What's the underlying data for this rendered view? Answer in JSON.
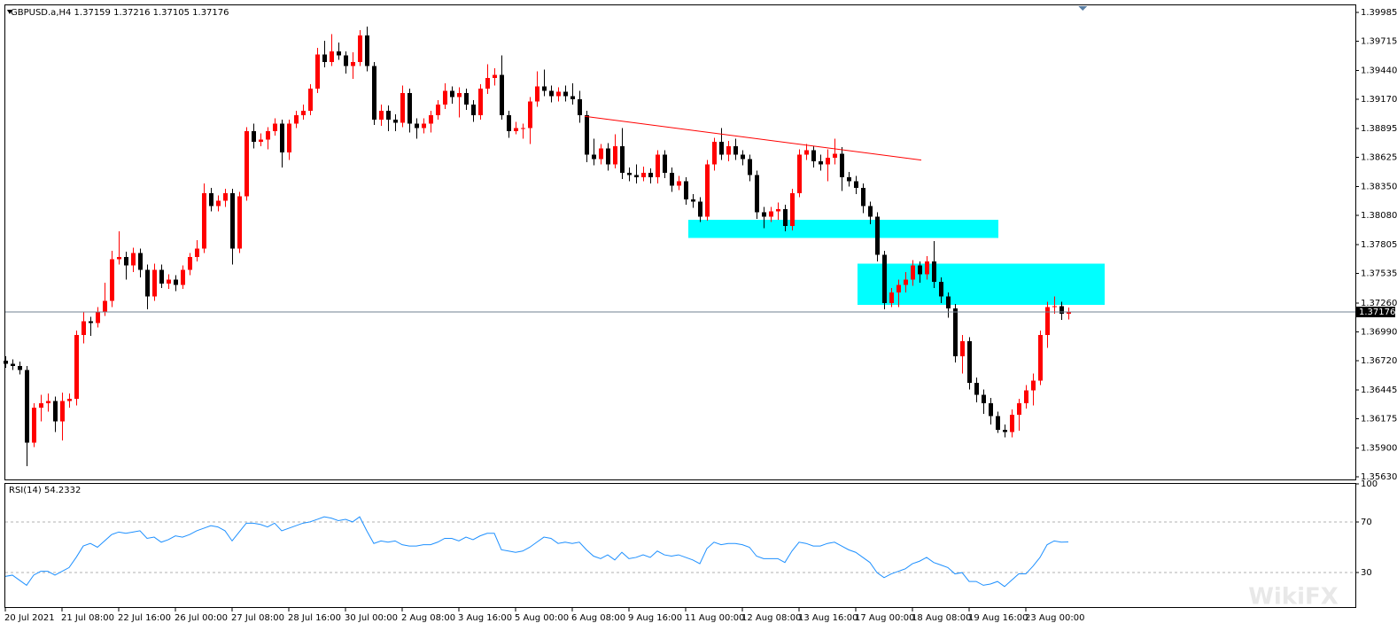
{
  "chart_data": [
    {
      "type": "candlestick",
      "title": "GBPUSD.a,H4  1.37159 1.37216 1.37105 1.37176",
      "watermark": "WikiFX",
      "up_color": "#ff0000",
      "down_color": "#000000",
      "categories": [
        "20 Jul 2021",
        null,
        null,
        null,
        null,
        null,
        null,
        null,
        "21 Jul 08:00",
        null,
        null,
        null,
        null,
        null,
        null,
        null,
        "22 Jul 16:00",
        null,
        null,
        null,
        null,
        null,
        null,
        null,
        "26 Jul 00:00",
        null,
        null,
        null,
        null,
        null,
        null,
        null,
        "27 Jul 08:00",
        null,
        null,
        null,
        null,
        null,
        null,
        null,
        "28 Jul 16:00",
        null,
        null,
        null,
        null,
        null,
        null,
        null,
        "30 Jul 00:00",
        null,
        null,
        null,
        null,
        null,
        null,
        null,
        "2 Aug 08:00",
        null,
        null,
        null,
        null,
        null,
        null,
        null,
        "3 Aug 16:00",
        null,
        null,
        null,
        null,
        null,
        null,
        null,
        "5 Aug 00:00",
        null,
        null,
        null,
        null,
        null,
        null,
        null,
        "6 Aug 08:00",
        null,
        null,
        null,
        null,
        null,
        null,
        null,
        "9 Aug 16:00",
        null,
        null,
        null,
        null,
        null,
        null,
        null,
        "11 Aug 00:00",
        null,
        null,
        null,
        null,
        null,
        null,
        null,
        "12 Aug 08:00",
        null,
        null,
        null,
        null,
        null,
        null,
        null,
        "13 Aug 16:00",
        null,
        null,
        null,
        null,
        null,
        null,
        null,
        "17 Aug 00:00",
        null,
        null,
        null,
        null,
        null,
        null,
        null,
        "18 Aug 08:00",
        null,
        null,
        null,
        null,
        null,
        null,
        null,
        "19 Aug 16:00",
        null,
        null,
        null,
        null,
        null,
        null,
        null,
        "23 Aug 00:00",
        null,
        null,
        null,
        null,
        null,
        null
      ],
      "open": [
        1.3672,
        1.3669,
        1.3667,
        1.3663,
        1.3595,
        1.3628,
        1.3632,
        1.3634,
        1.3615,
        1.3634,
        1.3636,
        1.3696,
        1.3709,
        1.3707,
        1.3718,
        1.3728,
        1.3767,
        1.3769,
        1.3761,
        1.3773,
        1.3757,
        1.3732,
        1.3757,
        1.3744,
        1.3748,
        1.3743,
        1.3757,
        1.3769,
        1.3777,
        1.3829,
        1.3817,
        1.3822,
        1.3829,
        1.3777,
        1.3826,
        1.3887,
        1.3877,
        1.3879,
        1.3887,
        1.3894,
        1.3867,
        1.3894,
        1.3902,
        1.3906,
        1.3927,
        1.3959,
        1.3952,
        1.3962,
        1.3958,
        1.3948,
        1.3952,
        1.3977,
        1.3948,
        1.3898,
        1.3906,
        1.3898,
        1.3895,
        1.3923,
        1.3894,
        1.389,
        1.3894,
        1.3902,
        1.3912,
        1.3925,
        1.3919,
        1.3923,
        1.3912,
        1.3902,
        1.3927,
        1.3937,
        1.394,
        1.3902,
        1.3887,
        1.389,
        1.389,
        1.3915,
        1.3929,
        1.3925,
        1.392,
        1.3924,
        1.392,
        1.3917,
        1.3902,
        1.3865,
        1.3861,
        1.3871,
        1.3856,
        1.3873,
        1.3848,
        1.3846,
        1.3844,
        1.3848,
        1.3844,
        1.3865,
        1.3848,
        1.3836,
        1.384,
        1.3823,
        1.3821,
        1.3807,
        1.3856,
        1.3877,
        1.3865,
        1.3873,
        1.3865,
        1.3861,
        1.3846,
        1.3811,
        1.3807,
        1.3812,
        1.3814,
        1.3798,
        1.3829,
        1.3865,
        1.3869,
        1.3859,
        1.3856,
        1.3862,
        1.3866,
        1.3844,
        1.384,
        1.3834,
        1.3817,
        1.3807,
        1.3771,
        1.3726,
        1.3736,
        1.3743,
        1.3748,
        1.3761,
        1.3753,
        1.3765,
        1.3746,
        1.3732,
        1.3721,
        1.3676,
        1.369,
        1.3651,
        1.364,
        1.3632,
        1.362,
        1.3607,
        1.3605,
        1.3621,
        1.3632,
        1.3644,
        1.3653,
        1.3696,
        1.3722,
        1.3723,
        1.37159
      ],
      "high": [
        1.3676,
        1.3673,
        1.3671,
        1.3667,
        1.3632,
        1.364,
        1.3641,
        1.3638,
        1.3642,
        1.3641,
        1.37,
        1.3718,
        1.3713,
        1.3722,
        1.3745,
        1.3775,
        1.3793,
        1.3774,
        1.3778,
        1.3777,
        1.3762,
        1.3763,
        1.3762,
        1.3753,
        1.3752,
        1.3761,
        1.3773,
        1.3785,
        1.3838,
        1.3834,
        1.3827,
        1.3833,
        1.3833,
        1.383,
        1.3891,
        1.3894,
        1.3885,
        1.3891,
        1.3899,
        1.3898,
        1.3898,
        1.3906,
        1.3912,
        1.3931,
        1.3965,
        1.3972,
        1.3978,
        1.397,
        1.3962,
        1.3961,
        1.3982,
        1.3985,
        1.3952,
        1.3912,
        1.3911,
        1.3903,
        1.393,
        1.3927,
        1.3899,
        1.3899,
        1.3906,
        1.3916,
        1.3932,
        1.3929,
        1.3928,
        1.3927,
        1.3916,
        1.3931,
        1.395,
        1.3946,
        1.3958,
        1.3906,
        1.3896,
        1.3894,
        1.3919,
        1.3943,
        1.3945,
        1.393,
        1.3928,
        1.393,
        1.3932,
        1.3925,
        1.3906,
        1.388,
        1.3875,
        1.3876,
        1.3884,
        1.389,
        1.3853,
        1.3856,
        1.3854,
        1.3852,
        1.3869,
        1.3869,
        1.3853,
        1.3845,
        1.3844,
        1.3828,
        1.3825,
        1.386,
        1.3881,
        1.389,
        1.3878,
        1.388,
        1.3869,
        1.3865,
        1.385,
        1.3816,
        1.3816,
        1.382,
        1.3818,
        1.3833,
        1.387,
        1.3875,
        1.3873,
        1.3865,
        1.387,
        1.388,
        1.3872,
        1.3849,
        1.3845,
        1.3838,
        1.3821,
        1.3811,
        1.3775,
        1.374,
        1.3748,
        1.3755,
        1.3766,
        1.3765,
        1.377,
        1.3784,
        1.375,
        1.3736,
        1.3725,
        1.3696,
        1.3694,
        1.3656,
        1.3645,
        1.3637,
        1.3624,
        1.3612,
        1.3626,
        1.3636,
        1.3649,
        1.366,
        1.37,
        1.3727,
        1.3732,
        1.3727,
        1.37216
      ],
      "low": [
        1.3665,
        1.3663,
        1.3659,
        1.3573,
        1.3591,
        1.3615,
        1.3624,
        1.3605,
        1.3597,
        1.3628,
        1.363,
        1.3688,
        1.3695,
        1.3703,
        1.3714,
        1.3722,
        1.3762,
        1.3748,
        1.3755,
        1.375,
        1.372,
        1.3728,
        1.374,
        1.3739,
        1.3737,
        1.3739,
        1.3752,
        1.3765,
        1.3773,
        1.3812,
        1.3812,
        1.3816,
        1.3762,
        1.3773,
        1.3822,
        1.3871,
        1.3873,
        1.387,
        1.3883,
        1.3853,
        1.386,
        1.389,
        1.3898,
        1.3902,
        1.3923,
        1.3947,
        1.3948,
        1.3954,
        1.3941,
        1.3936,
        1.3948,
        1.3943,
        1.3893,
        1.3892,
        1.3887,
        1.3887,
        1.3891,
        1.3886,
        1.388,
        1.3885,
        1.3886,
        1.3898,
        1.3908,
        1.3913,
        1.39,
        1.3907,
        1.3896,
        1.3898,
        1.3922,
        1.393,
        1.3898,
        1.3881,
        1.3884,
        1.388,
        1.3875,
        1.391,
        1.392,
        1.3914,
        1.3915,
        1.3915,
        1.3912,
        1.3895,
        1.3858,
        1.3855,
        1.3856,
        1.385,
        1.3852,
        1.3842,
        1.384,
        1.3838,
        1.384,
        1.3838,
        1.3838,
        1.3843,
        1.383,
        1.3832,
        1.3818,
        1.3815,
        1.3802,
        1.3803,
        1.385,
        1.386,
        1.3859,
        1.386,
        1.3855,
        1.384,
        1.3805,
        1.3796,
        1.3802,
        1.3804,
        1.3793,
        1.3794,
        1.3825,
        1.386,
        1.3853,
        1.385,
        1.384,
        1.3856,
        1.3831,
        1.3835,
        1.3828,
        1.381,
        1.38,
        1.3765,
        1.372,
        1.3722,
        1.3722,
        1.3736,
        1.3742,
        1.3745,
        1.3748,
        1.374,
        1.3726,
        1.3712,
        1.367,
        1.366,
        1.3645,
        1.3633,
        1.3622,
        1.3612,
        1.3604,
        1.36,
        1.36,
        1.3606,
        1.3627,
        1.363,
        1.3649,
        1.3684,
        1.3716,
        1.371,
        1.37105
      ],
      "close": [
        1.3669,
        1.3667,
        1.3663,
        1.3595,
        1.3628,
        1.3632,
        1.3634,
        1.3615,
        1.3634,
        1.3636,
        1.3696,
        1.3709,
        1.3707,
        1.3718,
        1.3728,
        1.3767,
        1.3769,
        1.3761,
        1.3773,
        1.3757,
        1.3732,
        1.3757,
        1.3744,
        1.3748,
        1.3743,
        1.3757,
        1.3769,
        1.3777,
        1.3829,
        1.3817,
        1.3822,
        1.3829,
        1.3777,
        1.3826,
        1.3887,
        1.3877,
        1.3879,
        1.3887,
        1.3894,
        1.3867,
        1.3894,
        1.3902,
        1.3906,
        1.3927,
        1.3959,
        1.3952,
        1.3962,
        1.3958,
        1.3948,
        1.3952,
        1.3977,
        1.3948,
        1.3898,
        1.3906,
        1.3898,
        1.3895,
        1.3923,
        1.3894,
        1.389,
        1.3894,
        1.3902,
        1.3912,
        1.3925,
        1.3919,
        1.3923,
        1.3912,
        1.3902,
        1.3927,
        1.3937,
        1.394,
        1.3902,
        1.3887,
        1.389,
        1.389,
        1.3915,
        1.3929,
        1.3925,
        1.392,
        1.3924,
        1.392,
        1.3917,
        1.3902,
        1.3865,
        1.3861,
        1.3871,
        1.3856,
        1.3873,
        1.3848,
        1.3846,
        1.3844,
        1.3848,
        1.3844,
        1.3865,
        1.3848,
        1.3836,
        1.384,
        1.3823,
        1.3821,
        1.3807,
        1.3856,
        1.3877,
        1.3865,
        1.3873,
        1.3865,
        1.3861,
        1.3846,
        1.3811,
        1.3807,
        1.3812,
        1.3814,
        1.3798,
        1.3829,
        1.3865,
        1.3869,
        1.3859,
        1.3856,
        1.3862,
        1.3866,
        1.3844,
        1.384,
        1.3834,
        1.3817,
        1.3807,
        1.3771,
        1.3726,
        1.3736,
        1.3743,
        1.3748,
        1.3761,
        1.3753,
        1.3765,
        1.3746,
        1.3732,
        1.3721,
        1.3676,
        1.369,
        1.3651,
        1.364,
        1.3632,
        1.362,
        1.3607,
        1.3605,
        1.3621,
        1.3632,
        1.3644,
        1.3653,
        1.3696,
        1.3722,
        1.3723,
        1.3716,
        1.37176
      ],
      "ylim": [
        1.35605,
        1.40059
      ],
      "yticks": [
        1.39985,
        1.39715,
        {
          "value": 1.3944,
          "label": "1.39440"
        },
        {
          "value": 1.3917,
          "label": "1.39170"
        },
        1.38895,
        1.38625,
        {
          "value": 1.3835,
          "label": "1.38350"
        },
        {
          "value": 1.3808,
          "label": "1.38080"
        },
        1.37805,
        1.37535,
        {
          "value": 1.3726,
          "label": "1.37260"
        },
        {
          "value": 1.3699,
          "label": "1.36990"
        },
        {
          "value": 1.3672,
          "label": "1.36720"
        },
        1.36445,
        1.36175,
        {
          "value": 1.359,
          "label": "1.35900"
        },
        {
          "value": 1.3563,
          "label": "1.35630"
        }
      ],
      "last_price": 1.37176,
      "last_price_color": "#708090",
      "trendlines": [
        {
          "color": "#ff0000",
          "bars": [
            81.75,
            129.25
          ],
          "prices": [
            1.3901,
            1.386
          ]
        }
      ],
      "zones": [
        {
          "color": "#00ffff",
          "bars": [
            96.4,
            140.1
          ],
          "prices": [
            1.3804,
            1.3787
          ]
        },
        {
          "color": "#00ffff",
          "bars": [
            120.25,
            155.1
          ],
          "prices": [
            1.3763,
            1.3724
          ]
        }
      ]
    },
    {
      "type": "line",
      "title": "RSI(14) 54.2332",
      "color": "#1e90ff",
      "values": [
        27,
        28,
        24,
        20,
        28,
        31,
        31,
        28,
        31,
        34,
        42,
        51,
        53,
        50,
        55,
        60,
        62,
        61,
        62,
        63,
        57,
        58,
        54,
        56,
        59,
        58,
        60,
        63,
        65,
        67,
        66,
        63,
        55,
        62,
        69,
        69,
        68,
        66,
        69,
        63,
        65,
        67,
        69,
        70,
        72,
        74,
        73,
        71,
        72,
        70,
        74,
        63,
        53,
        55,
        54,
        55,
        52,
        51,
        51,
        52,
        52,
        54,
        57,
        57,
        55,
        58,
        56,
        59,
        61,
        61,
        48,
        47,
        46,
        47,
        50,
        54,
        58,
        57,
        53,
        54,
        53,
        54,
        48,
        43,
        41,
        44,
        40,
        46,
        41,
        42,
        44,
        42,
        47,
        44,
        43,
        44,
        42,
        40,
        37,
        49,
        54,
        52,
        53,
        53,
        52,
        50,
        43,
        41,
        41,
        41,
        38,
        47,
        54,
        53,
        51,
        51,
        53,
        54,
        51,
        48,
        46,
        42,
        38,
        30,
        26,
        29,
        31,
        33,
        37,
        39,
        42,
        38,
        36,
        34,
        29,
        30,
        23,
        23,
        20,
        21,
        23,
        19,
        24,
        29,
        29,
        35,
        42,
        52,
        55,
        54,
        54.2332
      ],
      "ylim": [
        0,
        100
      ],
      "yticks": [
        100,
        70,
        30
      ]
    }
  ]
}
